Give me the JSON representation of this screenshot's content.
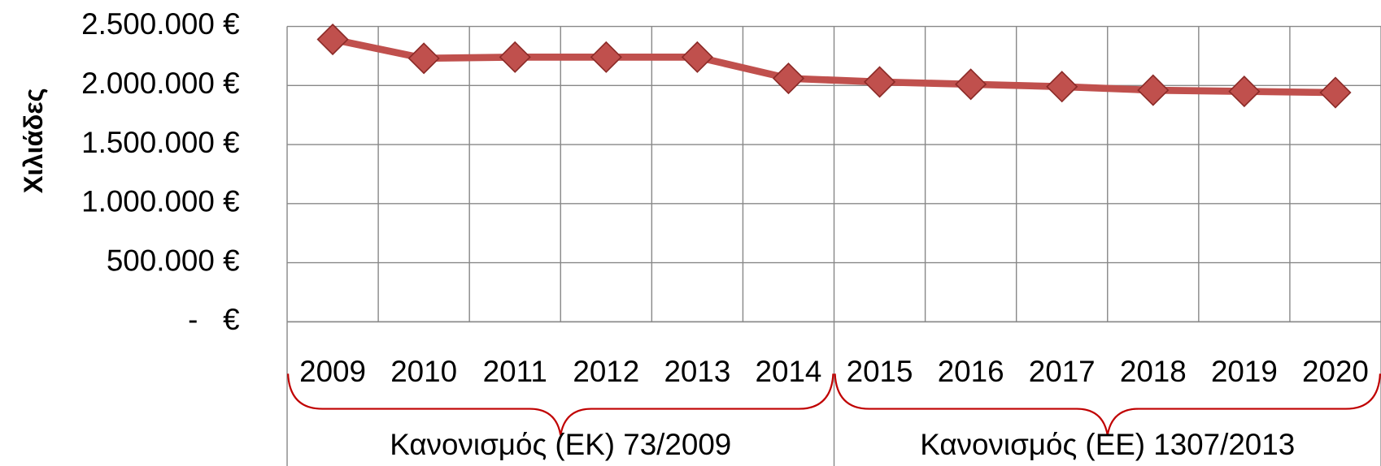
{
  "chart_data": {
    "type": "line",
    "y_label": "Χιλιάδες",
    "categories": [
      "2009",
      "2010",
      "2011",
      "2012",
      "2013",
      "2014",
      "2015",
      "2016",
      "2017",
      "2018",
      "2019",
      "2020"
    ],
    "groups": [
      "Κανονισμός (ΕΚ) 73/2009",
      "Κανονισμός (ΕΕ) 1307/2013"
    ],
    "series": [
      {
        "name": "Χιλιάδες",
        "color": "#c0504d",
        "values": [
          2390000,
          2230000,
          2240000,
          2240000,
          2240000,
          2060000,
          2030000,
          2010000,
          1990000,
          1960000,
          1950000,
          1940000
        ]
      }
    ],
    "ylim": [
      0,
      2500000
    ],
    "yticks": [
      {
        "value": 0,
        "label": "-   €"
      },
      {
        "value": 500000,
        "label": "500.000 €"
      },
      {
        "value": 1000000,
        "label": "1.000.000 €"
      },
      {
        "value": 1500000,
        "label": "1.500.000 €"
      },
      {
        "value": 2000000,
        "label": "2.000.000 €"
      },
      {
        "value": 2500000,
        "label": "2.500.000 €"
      }
    ],
    "grid": true
  }
}
